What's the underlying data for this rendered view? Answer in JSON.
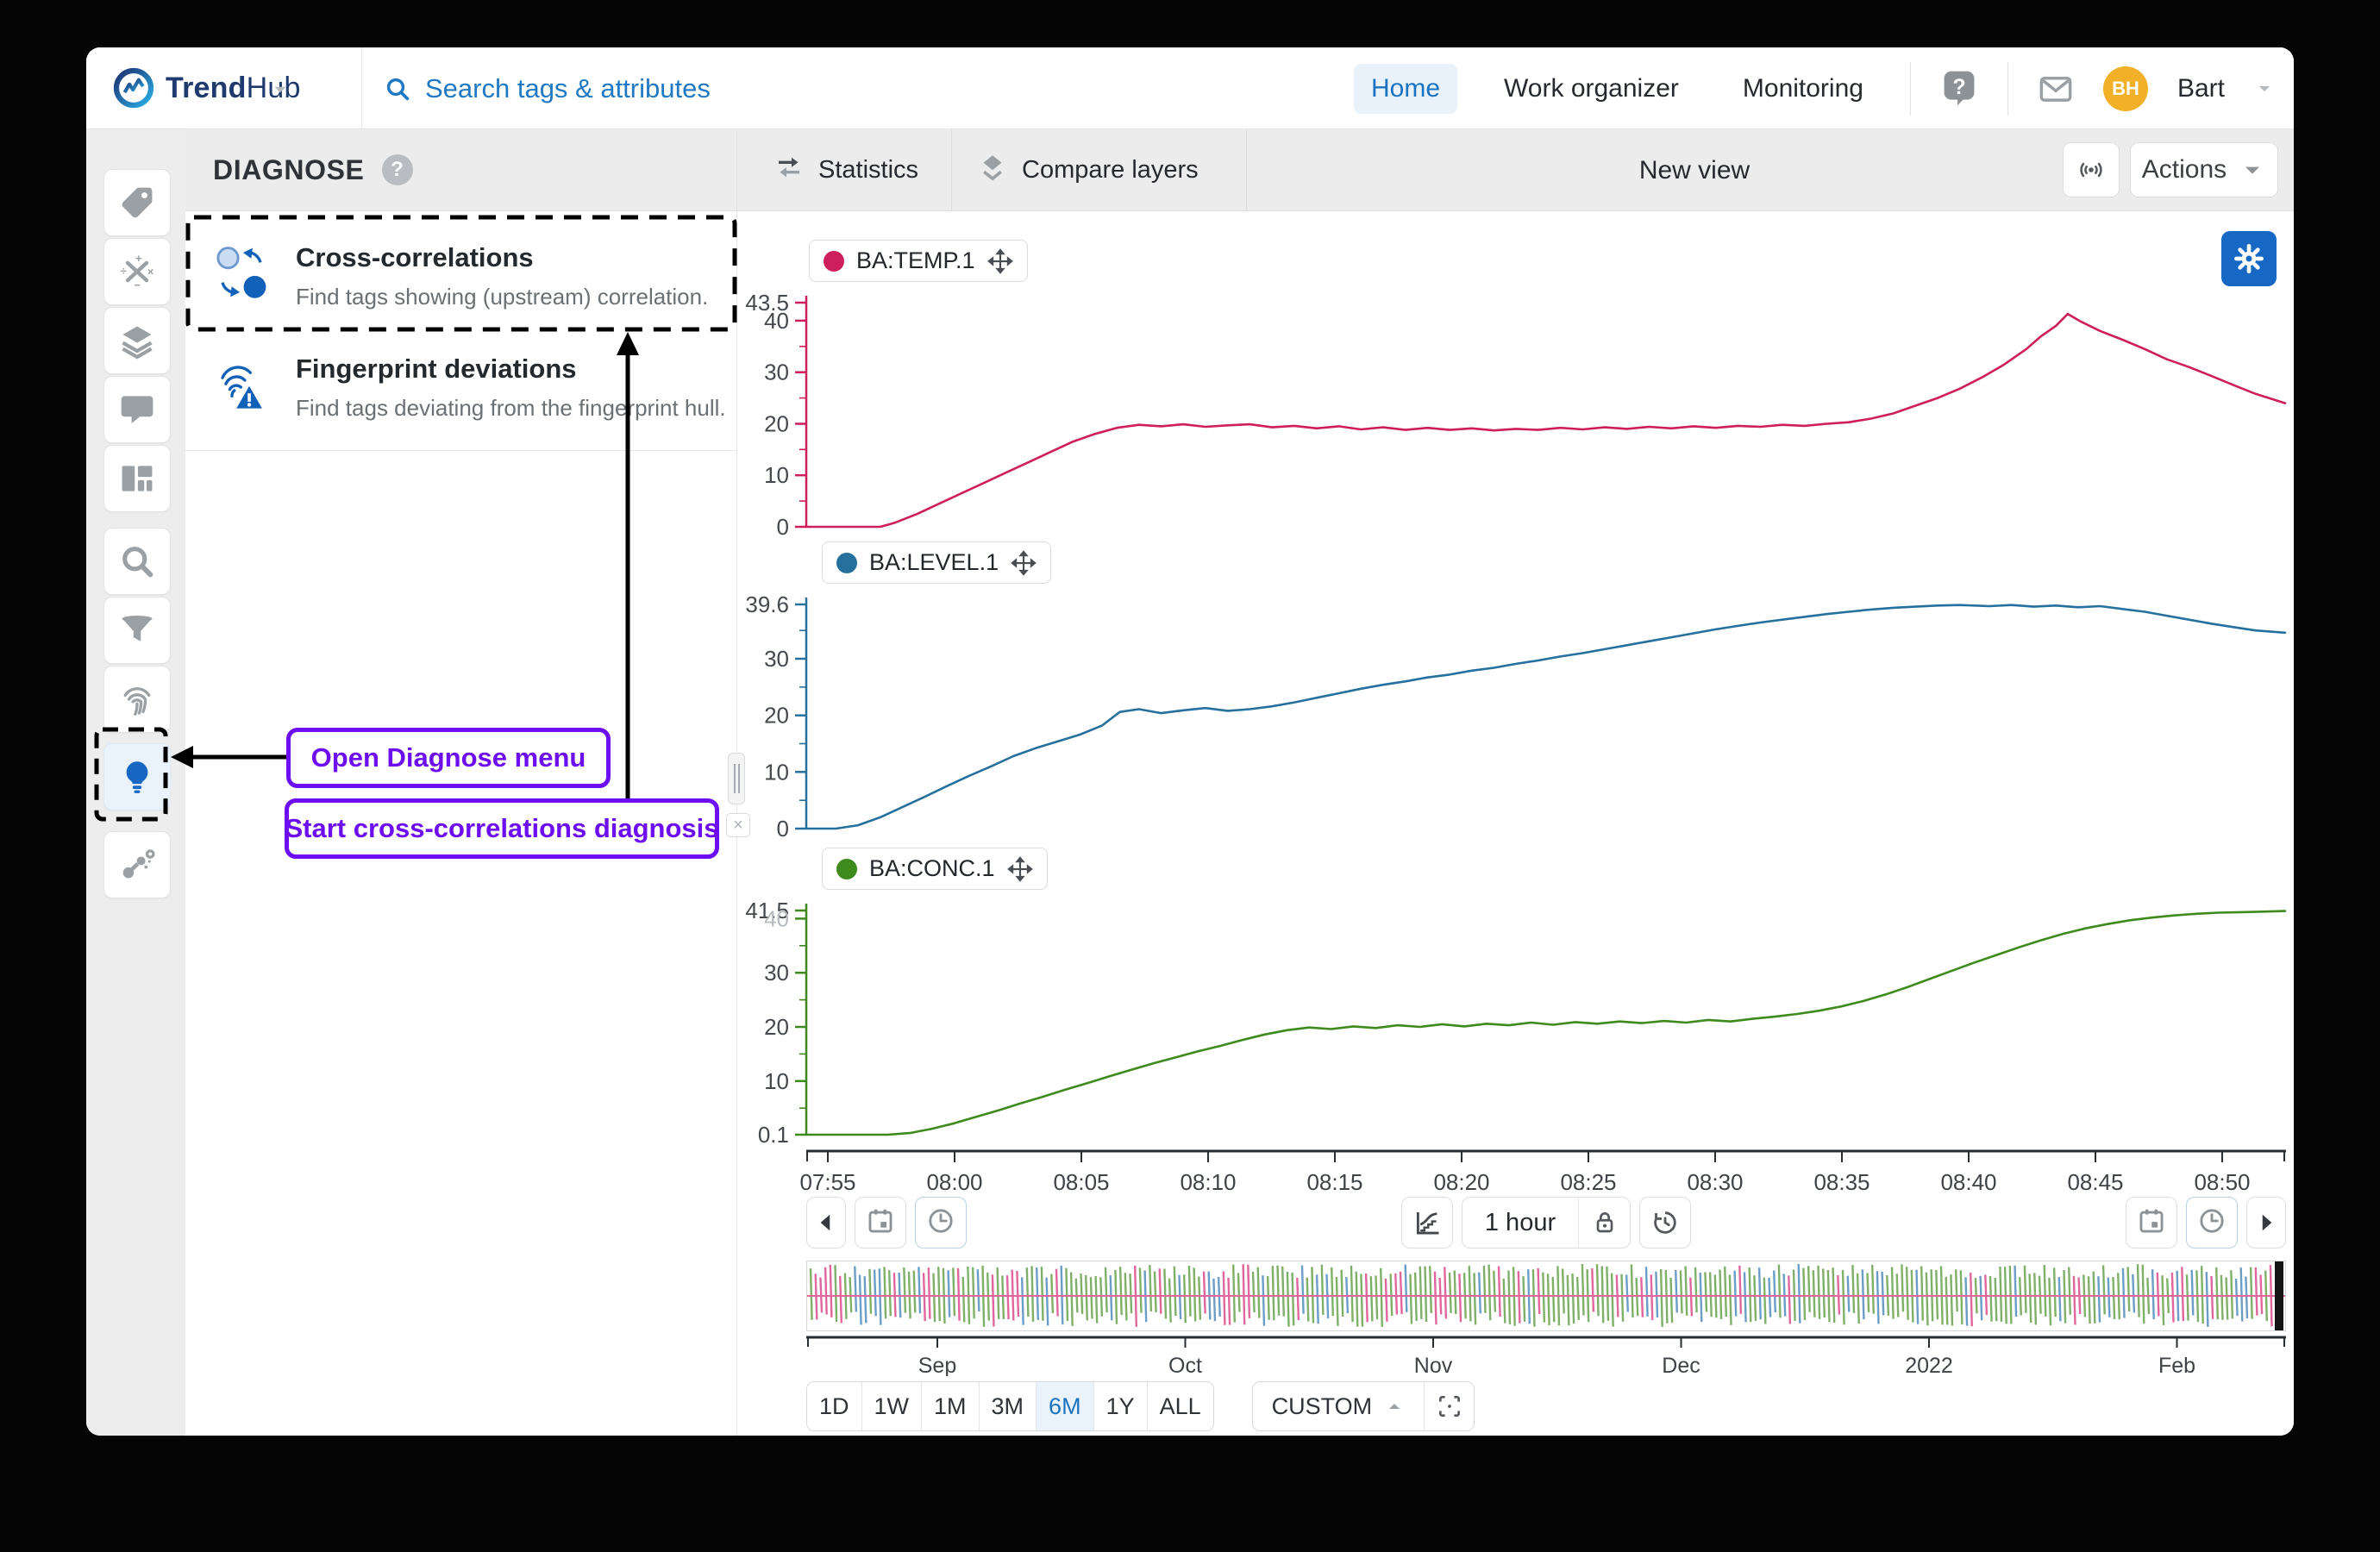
{
  "topbar": {
    "brand": {
      "bold": "Trend",
      "light": "Hub"
    },
    "search": {
      "placeholder": "Search tags & attributes"
    },
    "nav": [
      {
        "label": "Home",
        "active": true
      },
      {
        "label": "Work organizer",
        "active": false
      },
      {
        "label": "Monitoring",
        "active": false
      }
    ],
    "user": {
      "initials": "BH",
      "name": "Bart",
      "avatar_color": "#F2B029"
    }
  },
  "sidebar": {
    "items": [
      {
        "icon": "tag"
      },
      {
        "icon": "calculator"
      },
      {
        "icon": "layers"
      },
      {
        "icon": "comment"
      },
      {
        "icon": "layout"
      },
      {
        "icon": "search"
      },
      {
        "icon": "filter"
      },
      {
        "icon": "fingerprint"
      },
      {
        "icon": "lightbulb",
        "active": true
      },
      {
        "icon": "network"
      }
    ]
  },
  "diagnose": {
    "title": "DIAGNOSE",
    "items": [
      {
        "icon": "cross-correlation",
        "title": "Cross-correlations",
        "subtitle": "Find tags showing (upstream) correlation."
      },
      {
        "icon": "fingerprint-warning",
        "title": "Fingerprint deviations",
        "subtitle": "Find tags deviating from the fingerprint hull."
      }
    ]
  },
  "toolbar": {
    "statistics": "Statistics",
    "compare_layers": "Compare layers",
    "view_title": "New view",
    "actions": "Actions"
  },
  "annotations": {
    "color": "#6D0EF1",
    "open_menu": "Open Diagnose menu",
    "start_diagnosis": "Start cross-correlations diagnosis"
  },
  "time_controls": {
    "window_label": "1 hour"
  },
  "range_selector": {
    "options": [
      "1D",
      "1W",
      "1M",
      "3M",
      "6M",
      "1Y",
      "ALL"
    ],
    "active": "6M",
    "custom": "CUSTOM"
  },
  "chart_data": {
    "type": "line",
    "x_axis": {
      "ticks": [
        "07:55",
        "08:00",
        "08:05",
        "08:10",
        "08:15",
        "08:20",
        "08:25",
        "08:30",
        "08:35",
        "08:40",
        "08:45",
        "08:50"
      ]
    },
    "overview_axis": {
      "ticks": [
        "Sep",
        "Oct",
        "Nov",
        "Dec",
        "2022",
        "Feb"
      ]
    },
    "charts": [
      {
        "name": "BA:TEMP.1",
        "color": "#CE1E5B",
        "ylim": [
          0,
          43.5
        ],
        "yticks": [
          {
            "v": 43.5,
            "label": "43.5"
          },
          {
            "v": 40,
            "label": "40"
          },
          {
            "v": 30,
            "label": "30"
          },
          {
            "v": 20,
            "label": "20"
          },
          {
            "v": 10,
            "label": "10"
          },
          {
            "v": 0,
            "label": "0"
          }
        ],
        "points": [
          [
            0,
            0
          ],
          [
            0.025,
            0
          ],
          [
            0.05,
            0
          ],
          [
            0.06,
            0.8
          ],
          [
            0.075,
            2.5
          ],
          [
            0.09,
            4.5
          ],
          [
            0.105,
            6.5
          ],
          [
            0.12,
            8.5
          ],
          [
            0.135,
            10.5
          ],
          [
            0.15,
            12.5
          ],
          [
            0.165,
            14.5
          ],
          [
            0.18,
            16.5
          ],
          [
            0.195,
            18
          ],
          [
            0.21,
            19.2
          ],
          [
            0.225,
            19.8
          ],
          [
            0.24,
            19.5
          ],
          [
            0.255,
            19.9
          ],
          [
            0.27,
            19.4
          ],
          [
            0.285,
            19.7
          ],
          [
            0.3,
            19.9
          ],
          [
            0.315,
            19.3
          ],
          [
            0.33,
            19.6
          ],
          [
            0.345,
            19.1
          ],
          [
            0.36,
            19.5
          ],
          [
            0.375,
            18.9
          ],
          [
            0.39,
            19.3
          ],
          [
            0.405,
            18.8
          ],
          [
            0.42,
            19.2
          ],
          [
            0.435,
            18.8
          ],
          [
            0.45,
            19.1
          ],
          [
            0.465,
            18.7
          ],
          [
            0.48,
            19
          ],
          [
            0.495,
            18.8
          ],
          [
            0.51,
            19.2
          ],
          [
            0.525,
            18.9
          ],
          [
            0.54,
            19.3
          ],
          [
            0.555,
            19
          ],
          [
            0.57,
            19.4
          ],
          [
            0.585,
            19.1
          ],
          [
            0.6,
            19.5
          ],
          [
            0.615,
            19.2
          ],
          [
            0.63,
            19.6
          ],
          [
            0.645,
            19.4
          ],
          [
            0.66,
            19.8
          ],
          [
            0.675,
            19.6
          ],
          [
            0.69,
            20
          ],
          [
            0.705,
            20.3
          ],
          [
            0.72,
            21
          ],
          [
            0.735,
            22
          ],
          [
            0.75,
            23.5
          ],
          [
            0.765,
            25
          ],
          [
            0.78,
            26.8
          ],
          [
            0.795,
            29
          ],
          [
            0.81,
            31.5
          ],
          [
            0.825,
            34.5
          ],
          [
            0.835,
            37
          ],
          [
            0.845,
            39
          ],
          [
            0.853,
            41.3
          ],
          [
            0.862,
            39.8
          ],
          [
            0.875,
            38
          ],
          [
            0.89,
            36.3
          ],
          [
            0.905,
            34.5
          ],
          [
            0.92,
            32.5
          ],
          [
            0.935,
            31
          ],
          [
            0.95,
            29.3
          ],
          [
            0.965,
            27.5
          ],
          [
            0.98,
            25.8
          ],
          [
            1,
            24
          ]
        ]
      },
      {
        "name": "BA:LEVEL.1",
        "color": "#26709E",
        "ylim": [
          0,
          39.6
        ],
        "yticks": [
          {
            "v": 39.6,
            "label": "39.6"
          },
          {
            "v": 30,
            "label": "30"
          },
          {
            "v": 20,
            "label": "20"
          },
          {
            "v": 10,
            "label": "10"
          },
          {
            "v": 0,
            "label": "0"
          }
        ],
        "points": [
          [
            0,
            0
          ],
          [
            0.02,
            0
          ],
          [
            0.035,
            0.6
          ],
          [
            0.05,
            2
          ],
          [
            0.065,
            3.8
          ],
          [
            0.08,
            5.6
          ],
          [
            0.095,
            7.5
          ],
          [
            0.11,
            9.3
          ],
          [
            0.125,
            11
          ],
          [
            0.14,
            12.8
          ],
          [
            0.155,
            14.2
          ],
          [
            0.17,
            15.4
          ],
          [
            0.185,
            16.6
          ],
          [
            0.2,
            18.2
          ],
          [
            0.212,
            20.6
          ],
          [
            0.225,
            21.1
          ],
          [
            0.24,
            20.4
          ],
          [
            0.255,
            20.9
          ],
          [
            0.27,
            21.3
          ],
          [
            0.285,
            20.8
          ],
          [
            0.3,
            21.1
          ],
          [
            0.315,
            21.6
          ],
          [
            0.33,
            22.3
          ],
          [
            0.345,
            23.1
          ],
          [
            0.36,
            23.9
          ],
          [
            0.375,
            24.7
          ],
          [
            0.39,
            25.4
          ],
          [
            0.405,
            26
          ],
          [
            0.42,
            26.7
          ],
          [
            0.435,
            27.2
          ],
          [
            0.45,
            27.9
          ],
          [
            0.465,
            28.4
          ],
          [
            0.48,
            29.1
          ],
          [
            0.495,
            29.7
          ],
          [
            0.51,
            30.4
          ],
          [
            0.525,
            31
          ],
          [
            0.54,
            31.7
          ],
          [
            0.555,
            32.4
          ],
          [
            0.57,
            33.1
          ],
          [
            0.585,
            33.8
          ],
          [
            0.6,
            34.5
          ],
          [
            0.615,
            35.2
          ],
          [
            0.63,
            35.8
          ],
          [
            0.645,
            36.4
          ],
          [
            0.66,
            36.9
          ],
          [
            0.675,
            37.4
          ],
          [
            0.69,
            37.9
          ],
          [
            0.705,
            38.3
          ],
          [
            0.72,
            38.7
          ],
          [
            0.735,
            39
          ],
          [
            0.75,
            39.2
          ],
          [
            0.765,
            39.4
          ],
          [
            0.78,
            39.5
          ],
          [
            0.8,
            39.3
          ],
          [
            0.815,
            39.5
          ],
          [
            0.83,
            39.2
          ],
          [
            0.845,
            39.4
          ],
          [
            0.86,
            39.1
          ],
          [
            0.875,
            39.3
          ],
          [
            0.89,
            38.8
          ],
          [
            0.905,
            38.3
          ],
          [
            0.92,
            37.6
          ],
          [
            0.935,
            36.9
          ],
          [
            0.95,
            36.2
          ],
          [
            0.965,
            35.6
          ],
          [
            0.98,
            35
          ],
          [
            1,
            34.6
          ]
        ]
      },
      {
        "name": "BA:CONC.1",
        "color": "#3E8A1C",
        "ylim": [
          0.1,
          41.5
        ],
        "yticks": [
          {
            "v": 41.5,
            "label": "41.5"
          },
          {
            "v": 40,
            "label": "40",
            "faint": true
          },
          {
            "v": 30,
            "label": "30"
          },
          {
            "v": 20,
            "label": "20"
          },
          {
            "v": 10,
            "label": "10"
          },
          {
            "v": 0.1,
            "label": "0.1"
          }
        ],
        "points": [
          [
            0,
            0.1
          ],
          [
            0.03,
            0.1
          ],
          [
            0.055,
            0.1
          ],
          [
            0.07,
            0.4
          ],
          [
            0.085,
            1.2
          ],
          [
            0.1,
            2.2
          ],
          [
            0.115,
            3.4
          ],
          [
            0.13,
            4.6
          ],
          [
            0.145,
            5.9
          ],
          [
            0.16,
            7.1
          ],
          [
            0.175,
            8.4
          ],
          [
            0.19,
            9.6
          ],
          [
            0.205,
            10.9
          ],
          [
            0.22,
            12.1
          ],
          [
            0.235,
            13.3
          ],
          [
            0.25,
            14.4
          ],
          [
            0.265,
            15.5
          ],
          [
            0.28,
            16.5
          ],
          [
            0.295,
            17.6
          ],
          [
            0.31,
            18.6
          ],
          [
            0.325,
            19.4
          ],
          [
            0.34,
            19.9
          ],
          [
            0.355,
            19.6
          ],
          [
            0.37,
            20.1
          ],
          [
            0.385,
            19.8
          ],
          [
            0.4,
            20.3
          ],
          [
            0.415,
            20
          ],
          [
            0.43,
            20.5
          ],
          [
            0.445,
            20.1
          ],
          [
            0.46,
            20.6
          ],
          [
            0.475,
            20.3
          ],
          [
            0.49,
            20.8
          ],
          [
            0.505,
            20.4
          ],
          [
            0.52,
            20.9
          ],
          [
            0.535,
            20.6
          ],
          [
            0.55,
            21
          ],
          [
            0.565,
            20.7
          ],
          [
            0.58,
            21.1
          ],
          [
            0.595,
            20.8
          ],
          [
            0.61,
            21.3
          ],
          [
            0.625,
            21
          ],
          [
            0.64,
            21.5
          ],
          [
            0.655,
            21.9
          ],
          [
            0.67,
            22.4
          ],
          [
            0.685,
            23
          ],
          [
            0.7,
            23.8
          ],
          [
            0.715,
            24.8
          ],
          [
            0.73,
            26
          ],
          [
            0.745,
            27.4
          ],
          [
            0.76,
            28.9
          ],
          [
            0.775,
            30.4
          ],
          [
            0.79,
            31.9
          ],
          [
            0.805,
            33.3
          ],
          [
            0.82,
            34.7
          ],
          [
            0.835,
            36
          ],
          [
            0.85,
            37.2
          ],
          [
            0.865,
            38.2
          ],
          [
            0.88,
            39
          ],
          [
            0.895,
            39.7
          ],
          [
            0.91,
            40.2
          ],
          [
            0.925,
            40.6
          ],
          [
            0.94,
            40.9
          ],
          [
            0.955,
            41.1
          ],
          [
            0.97,
            41.2
          ],
          [
            0.985,
            41.3
          ],
          [
            1,
            41.4
          ]
        ]
      }
    ],
    "overview": {
      "colors": {
        "green": "#7FB069",
        "blue": "#6C9DC6",
        "pink": "#E0679C"
      },
      "legend_note": "dense 6-month signal preview"
    }
  }
}
